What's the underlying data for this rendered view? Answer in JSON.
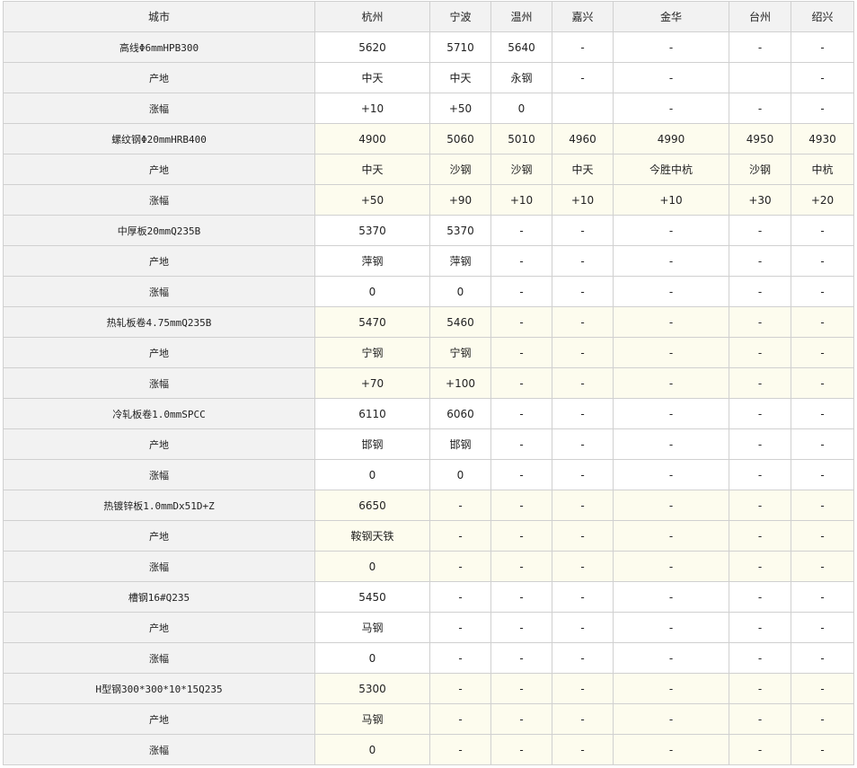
{
  "header": [
    "城市",
    "杭州",
    "宁波",
    "温州",
    "嘉兴",
    "金华",
    "台州",
    "绍兴"
  ],
  "groups": [
    {
      "product": "高线Φ6mmHPB300",
      "price": [
        "5620",
        "5710",
        "5640",
        "-",
        "-",
        "-",
        "-"
      ],
      "origin": [
        "中天",
        "中天",
        "永钢",
        "-",
        "-",
        "",
        "-"
      ],
      "change": [
        "+10",
        "+50",
        "0",
        "",
        "-",
        "-",
        "-"
      ]
    },
    {
      "product": "螺纹钢Φ20mmHRB400",
      "price": [
        "4900",
        "5060",
        "5010",
        "4960",
        "4990",
        "4950",
        "4930"
      ],
      "origin": [
        "中天",
        "沙钢",
        "沙钢",
        "中天",
        "今胜中杭",
        "沙钢",
        "中杭"
      ],
      "change": [
        "+50",
        "+90",
        "+10",
        "+10",
        "+10",
        "+30",
        "+20"
      ]
    },
    {
      "product": "中厚板20mmQ235B",
      "price": [
        "5370",
        "5370",
        "-",
        "-",
        "-",
        "-",
        "-"
      ],
      "origin": [
        "萍钢",
        "萍钢",
        "-",
        "-",
        "-",
        "-",
        "-"
      ],
      "change": [
        "0",
        "0",
        "-",
        "-",
        "-",
        "-",
        "-"
      ]
    },
    {
      "product": "热轧板卷4.75mmQ235B",
      "price": [
        "5470",
        "5460",
        "-",
        "-",
        "-",
        "-",
        "-"
      ],
      "origin": [
        "宁钢",
        "宁钢",
        "-",
        "-",
        "-",
        "-",
        "-"
      ],
      "change": [
        "+70",
        "+100",
        "-",
        "-",
        "-",
        "-",
        "-"
      ]
    },
    {
      "product": "冷轧板卷1.0mmSPCC",
      "price": [
        "6110",
        "6060",
        "-",
        "-",
        "-",
        "-",
        "-"
      ],
      "origin": [
        "邯钢",
        "邯钢",
        "-",
        "-",
        "-",
        "-",
        "-"
      ],
      "change": [
        "0",
        "0",
        "-",
        "-",
        "-",
        "-",
        "-"
      ]
    },
    {
      "product": "热镀锌板1.0mmDx51D+Z",
      "price": [
        "6650",
        "-",
        "-",
        "-",
        "-",
        "-",
        "-"
      ],
      "origin": [
        "鞍钢天铁",
        "-",
        "-",
        "-",
        "-",
        "-",
        "-"
      ],
      "change": [
        "0",
        "-",
        "-",
        "-",
        "-",
        "-",
        "-"
      ]
    },
    {
      "product": "槽钢16#Q235",
      "price": [
        "5450",
        "-",
        "-",
        "-",
        "-",
        "-",
        "-"
      ],
      "origin": [
        "马钢",
        "-",
        "-",
        "-",
        "-",
        "-",
        "-"
      ],
      "change": [
        "0",
        "-",
        "-",
        "-",
        "-",
        "-",
        "-"
      ]
    },
    {
      "product": "H型钢300*300*10*15Q235",
      "price": [
        "5300",
        "-",
        "-",
        "-",
        "-",
        "-",
        "-"
      ],
      "origin": [
        "马钢",
        "-",
        "-",
        "-",
        "-",
        "-",
        "-"
      ],
      "change": [
        "0",
        "-",
        "-",
        "-",
        "-",
        "-",
        "-"
      ]
    }
  ],
  "labels": {
    "origin": "产地",
    "change": "涨幅"
  },
  "colors": {
    "label_bg": "#f2f2f2",
    "alt_row_bg": "#fdfcee",
    "border": "#d0d0d0"
  }
}
